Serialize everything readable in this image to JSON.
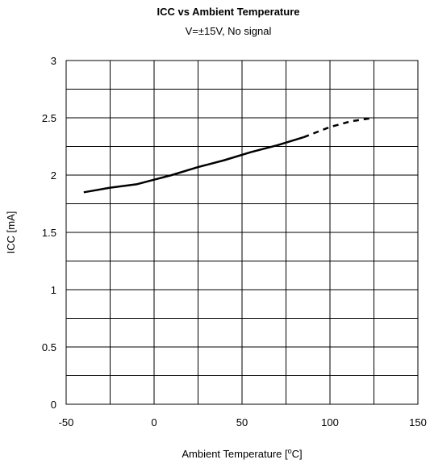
{
  "chart_data": {
    "type": "line",
    "title": "ICC vs Ambient Temperature",
    "subtitle": "V=±15V, No signal",
    "xlabel": "Ambient Temperature [",
    "xlabel_sup": "o",
    "xlabel_unit": "C]",
    "ylabel": "ICC [mA]",
    "xlim": [
      -50,
      150
    ],
    "ylim": [
      0,
      3
    ],
    "x_ticks": [
      -50,
      -25,
      0,
      25,
      50,
      75,
      100,
      125,
      150
    ],
    "x_tick_labels": [
      "-50",
      "0",
      "50",
      "100",
      "150"
    ],
    "x_tick_label_values": [
      -50,
      0,
      50,
      100,
      150
    ],
    "y_ticks": [
      0,
      0.25,
      0.5,
      0.75,
      1,
      1.25,
      1.5,
      1.75,
      2,
      2.25,
      2.5,
      2.75,
      3
    ],
    "y_tick_labels": [
      "0",
      "0.5",
      "1",
      "1.5",
      "2",
      "2.5",
      "3"
    ],
    "y_tick_label_values": [
      0,
      0.5,
      1,
      1.5,
      2,
      2.5,
      3
    ],
    "grid": true,
    "series": [
      {
        "style": "solid",
        "x": [
          -40,
          -25,
          -10,
          0,
          10,
          25,
          40,
          55,
          70,
          85
        ],
        "y": [
          1.85,
          1.89,
          1.92,
          1.96,
          2.0,
          2.07,
          2.13,
          2.2,
          2.26,
          2.33
        ]
      },
      {
        "style": "dashed",
        "x": [
          85,
          100,
          112,
          125
        ],
        "y": [
          2.33,
          2.42,
          2.47,
          2.5
        ]
      }
    ],
    "colors": {
      "line": "#000000",
      "grid": "#000000",
      "background": "#ffffff"
    }
  }
}
